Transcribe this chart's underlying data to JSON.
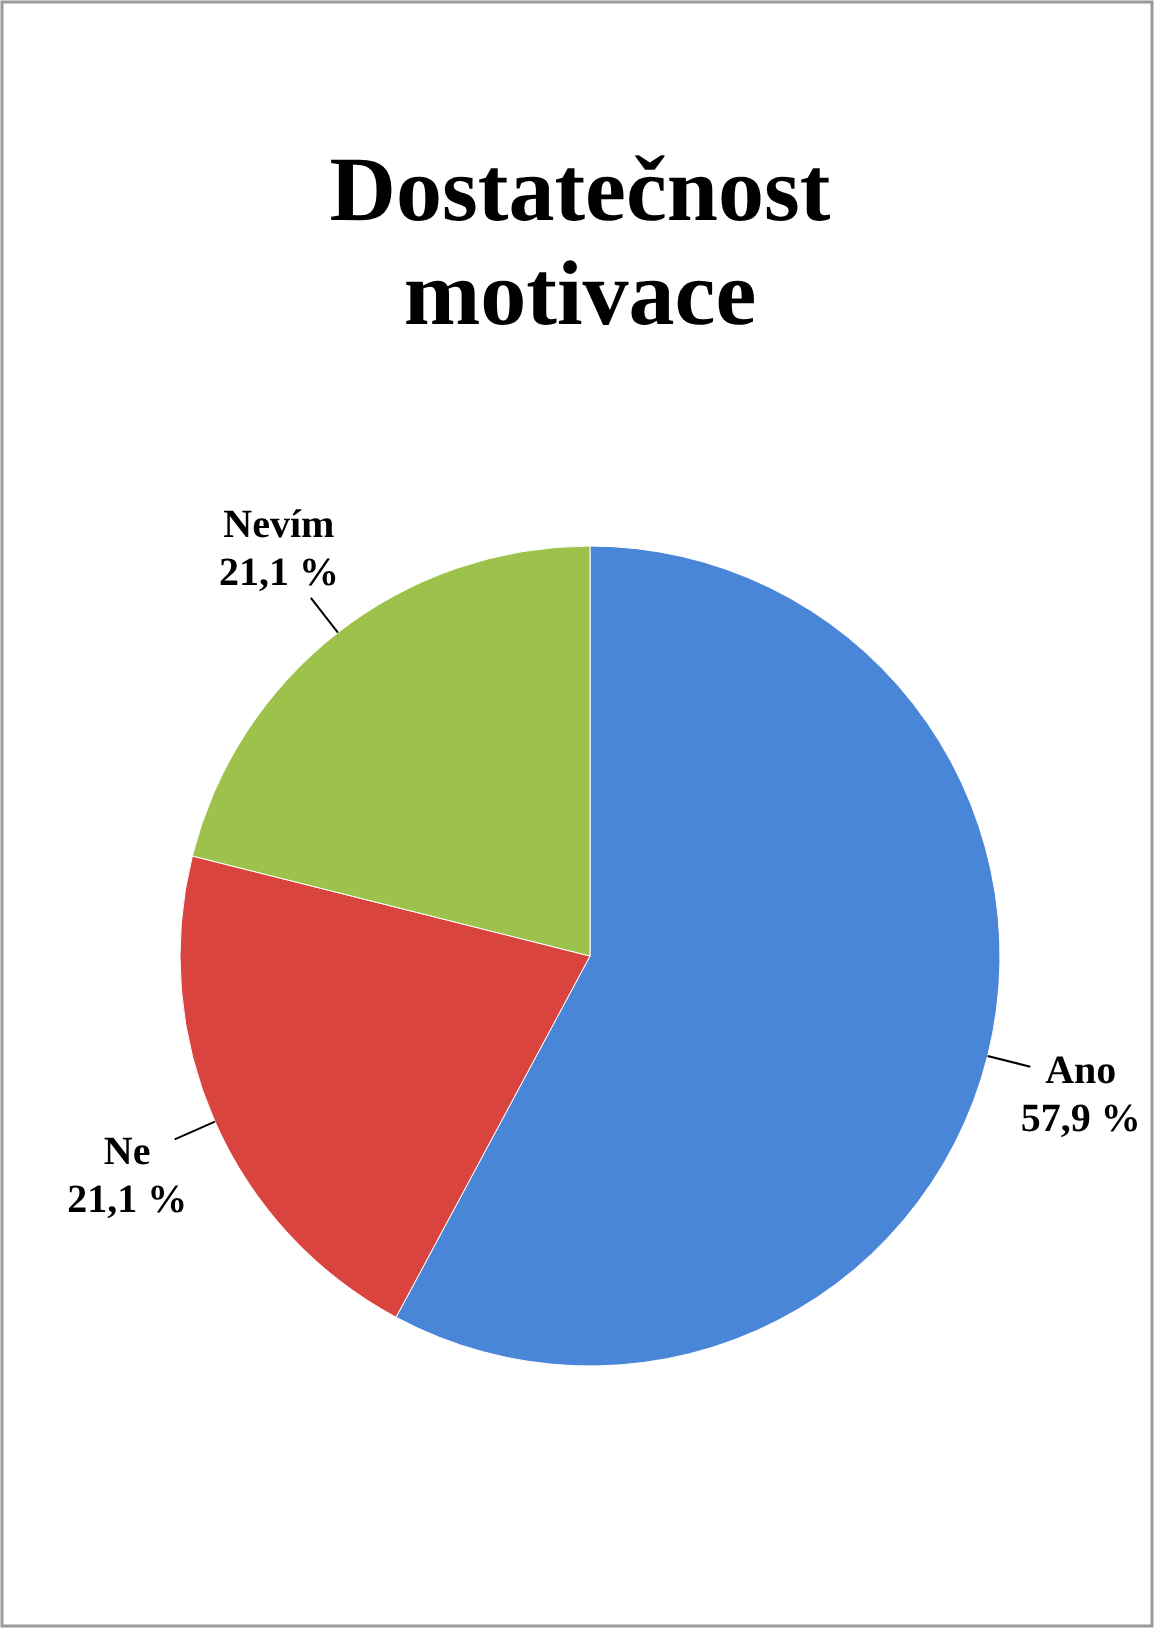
{
  "chart_data": {
    "type": "pie",
    "title": "Dostatečnost motivace",
    "categories": [
      "Ano",
      "Ne",
      "Nevím"
    ],
    "values": [
      57.9,
      21.1,
      21.1
    ],
    "value_labels": [
      "57,9 %",
      "21,1 %",
      "21,1 %"
    ],
    "colors": [
      "#4a86d8",
      "#d9443f",
      "#9dc24b"
    ],
    "legend": false
  }
}
